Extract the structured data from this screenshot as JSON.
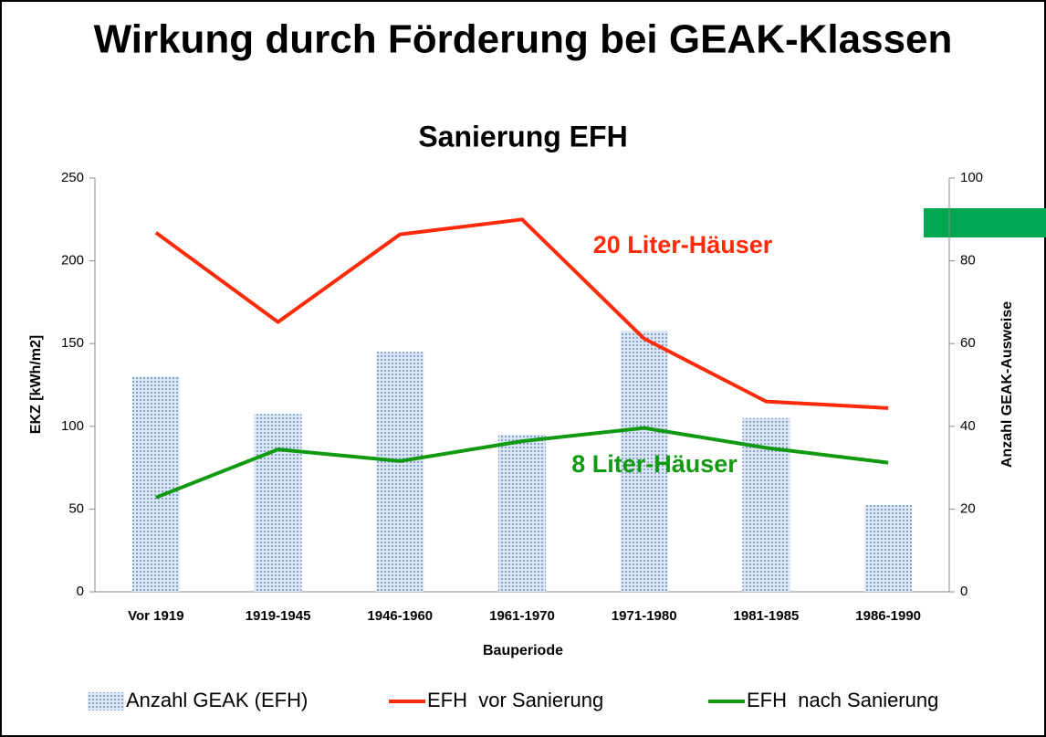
{
  "title": "Wirkung durch Förderung bei GEAK-Klassen",
  "chart_data": {
    "type": "combo",
    "title": "Sanierung EFH",
    "x_label": "Bauperiode",
    "y_label": "EKZ [kWh/m2]",
    "y2_label": "Anzahl GEAK-Ausweise",
    "categories": [
      "Vor 1919",
      "1919-1945",
      "1946-1960",
      "1961-1970",
      "1971-1980",
      "1981-1985",
      "1986-1990"
    ],
    "series": [
      {
        "name": "Anzahl GEAK (EFH)",
        "type": "bar",
        "axis": "y2",
        "color": "#9bb7d9",
        "values": [
          52,
          43,
          58,
          38,
          63,
          42,
          21
        ]
      },
      {
        "name": "EFH  vor Sanierung",
        "type": "line",
        "color": "#ff2a0a",
        "values": [
          217,
          163,
          216,
          225,
          153,
          115,
          111
        ]
      },
      {
        "name": "EFH  nach Sanierung",
        "type": "line",
        "color": "#119911",
        "values": [
          57,
          86,
          79,
          91,
          99,
          87,
          78
        ]
      }
    ],
    "ylim": [
      0,
      250
    ],
    "yticks": [
      0,
      50,
      100,
      150,
      200,
      250
    ],
    "y2lim": [
      0,
      100
    ],
    "y2ticks": [
      0,
      20,
      40,
      60,
      80,
      100
    ],
    "legend": "bottom",
    "annotations": [
      {
        "text": "20 Liter-Häuser",
        "color": "#ff2a0a"
      },
      {
        "text": "8 Liter-Häuser",
        "color": "#119911"
      }
    ]
  }
}
